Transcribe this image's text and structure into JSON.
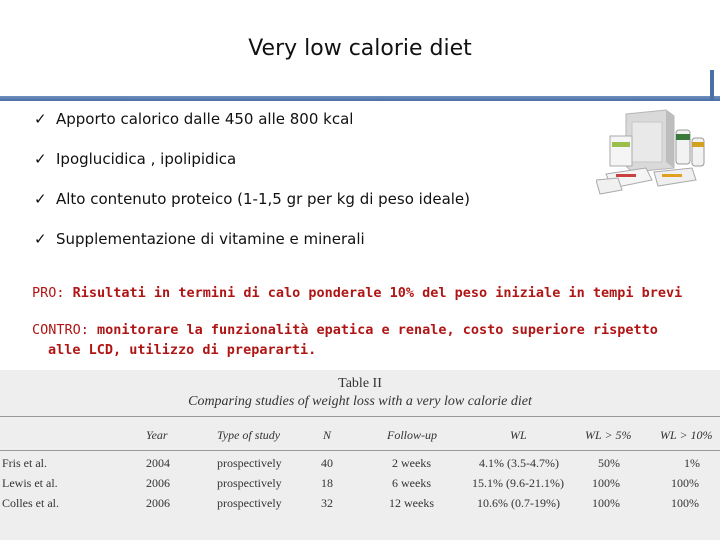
{
  "title": "Very low calorie diet",
  "bullets": [
    "Apporto calorico dalle 450  alle 800 kcal",
    "Ipoglucidica , ipolipidica",
    "Alto contenuto proteico (1-1,5 gr per kg di peso ideale)",
    "Supplementazione di vitamine e minerali"
  ],
  "check_glyph": "✓",
  "pro": {
    "label": "PRO:",
    "text": "Risultati in termini di calo ponderale 10% del peso iniziale in tempi brevi"
  },
  "contro": {
    "label": "CONTRO:",
    "text_line1": "monitorare la funzionalità epatica e renale, costo superiore rispetto",
    "text_line2": "alle LCD, utilizzo di prepararti."
  },
  "table": {
    "title": "Table II",
    "subtitle": "Comparing studies of weight loss with a very low calorie diet",
    "headers": [
      "",
      "Year",
      "Type of study",
      "N",
      "Follow-up",
      "WL",
      "WL > 5%",
      "WL > 10%"
    ],
    "rows": [
      [
        "Fris et al.",
        "2004",
        "prospectively",
        "40",
        "2 weeks",
        "4.1% (3.5-4.7%)",
        "50%",
        "1%"
      ],
      [
        "Lewis et al.",
        "2006",
        "prospectively",
        "18",
        "6 weeks",
        "15.1% (9.6-21.1%)",
        "100%",
        "100%"
      ],
      [
        "Colles et al.",
        "2006",
        "prospectively",
        "32",
        "12 weeks",
        "10.6% (0.7-19%)",
        "100%",
        "100%"
      ]
    ]
  },
  "colors": {
    "accent_rule": "#4a6fa5",
    "red_text": "#b01515"
  }
}
